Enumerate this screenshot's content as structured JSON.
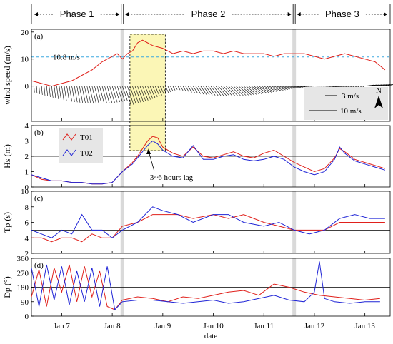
{
  "chart_data": {
    "type": "line",
    "xlabel": "date",
    "x_ticks": [
      "Jan 7",
      "Jan 8",
      "Jan 9",
      "Jan 10",
      "Jan 11",
      "Jan 12",
      "Jan 13"
    ],
    "x_range_days": [
      6.4,
      13.5
    ],
    "phases": [
      {
        "label": "Phase 1",
        "start_day": 6.4,
        "end_day": 8.2
      },
      {
        "label": "Phase 2",
        "start_day": 8.2,
        "end_day": 11.6
      },
      {
        "label": "Phase 3",
        "start_day": 11.6,
        "end_day": 13.5
      }
    ],
    "phase_boundaries_days": [
      8.2,
      11.6
    ],
    "highlight_window_days": [
      8.35,
      9.05
    ],
    "panels": [
      {
        "id": "a",
        "tag": "(a)",
        "ylabel": "wind speed (m/s)",
        "ylim": [
          -13,
          21
        ],
        "yticks": [
          0,
          10,
          20
        ],
        "reference": {
          "value": 10.8,
          "label": "10.8 m/s",
          "color": "#3aa8e0"
        },
        "series": [
          {
            "name": "",
            "color": "#e0201b",
            "x": [
              6.4,
              6.6,
              6.8,
              7.0,
              7.2,
              7.4,
              7.6,
              7.8,
              8.0,
              8.1,
              8.2,
              8.3,
              8.4,
              8.5,
              8.6,
              8.7,
              8.8,
              9.0,
              9.2,
              9.4,
              9.6,
              9.8,
              10.0,
              10.2,
              10.4,
              10.6,
              10.8,
              11.0,
              11.2,
              11.4,
              11.6,
              11.8,
              12.0,
              12.2,
              12.4,
              12.6,
              12.8,
              13.0,
              13.2,
              13.4
            ],
            "y": [
              2,
              1,
              0,
              1,
              2,
              4,
              6,
              9,
              11,
              12,
              10,
              12,
              13,
              16,
              17,
              16,
              15,
              14,
              12,
              13,
              12,
              13,
              13,
              12,
              13,
              12,
              12,
              12,
              11,
              12,
              12,
              12,
              11,
              10,
              11,
              12,
              11,
              10,
              9,
              6
            ]
          }
        ],
        "vector_legend": [
          {
            "label": "3 m/s"
          },
          {
            "label": "10 m/s"
          }
        ],
        "north_label": "N"
      },
      {
        "id": "b",
        "tag": "(b)",
        "ylabel": "Hs (m)",
        "ylim": [
          0,
          4
        ],
        "yticks": [
          0,
          1,
          2,
          3,
          4
        ],
        "reference_value": 2,
        "annotation": "3~6 hours lag",
        "series": [
          {
            "name": "T01",
            "color": "#e0201b",
            "x": [
              6.4,
              6.6,
              6.8,
              7.0,
              7.2,
              7.4,
              7.6,
              7.8,
              8.0,
              8.2,
              8.4,
              8.5,
              8.6,
              8.7,
              8.8,
              8.9,
              9.0,
              9.2,
              9.4,
              9.6,
              9.8,
              10.0,
              10.2,
              10.4,
              10.6,
              10.8,
              11.0,
              11.2,
              11.4,
              11.6,
              11.8,
              12.0,
              12.2,
              12.4,
              12.5,
              12.6,
              12.8,
              13.0,
              13.2,
              13.4
            ],
            "y": [
              0.8,
              0.5,
              0.4,
              0.4,
              0.3,
              0.3,
              0.2,
              0.2,
              0.3,
              1.0,
              1.6,
              2.0,
              2.5,
              3.0,
              3.3,
              3.2,
              2.6,
              2.2,
              2.0,
              2.6,
              2.0,
              1.9,
              2.1,
              2.3,
              2.0,
              1.9,
              2.2,
              2.4,
              2.0,
              1.6,
              1.3,
              1.0,
              1.2,
              1.9,
              2.5,
              2.3,
              1.8,
              1.6,
              1.4,
              1.2
            ]
          },
          {
            "name": "T02",
            "color": "#1f24d6",
            "x": [
              6.4,
              6.6,
              6.8,
              7.0,
              7.2,
              7.4,
              7.6,
              7.8,
              8.0,
              8.2,
              8.4,
              8.5,
              8.6,
              8.7,
              8.8,
              8.9,
              9.0,
              9.2,
              9.4,
              9.6,
              9.8,
              10.0,
              10.2,
              10.4,
              10.6,
              10.8,
              11.0,
              11.2,
              11.4,
              11.6,
              11.8,
              12.0,
              12.2,
              12.4,
              12.5,
              12.6,
              12.8,
              13.0,
              13.2,
              13.4
            ],
            "y": [
              0.8,
              0.6,
              0.4,
              0.4,
              0.3,
              0.3,
              0.2,
              0.2,
              0.3,
              1.0,
              1.5,
              1.9,
              2.3,
              2.7,
              3.0,
              2.8,
              2.4,
              2.0,
              1.9,
              2.7,
              1.8,
              1.8,
              2.0,
              2.1,
              1.8,
              1.7,
              1.8,
              2.0,
              1.8,
              1.3,
              1.0,
              0.8,
              1.0,
              1.8,
              2.6,
              2.2,
              1.7,
              1.5,
              1.3,
              1.1
            ]
          }
        ]
      },
      {
        "id": "c",
        "tag": "(c)",
        "ylabel": "Tp (s)",
        "ylim": [
          2,
          10
        ],
        "yticks": [
          2,
          4,
          6,
          8,
          10
        ],
        "reference_value": 5,
        "series": [
          {
            "name": "T01",
            "color": "#e0201b",
            "x": [
              6.4,
              6.6,
              6.8,
              7.0,
              7.2,
              7.4,
              7.6,
              7.8,
              8.0,
              8.2,
              8.5,
              8.8,
              9.0,
              9.3,
              9.6,
              10.0,
              10.3,
              10.6,
              11.0,
              11.3,
              11.6,
              11.9,
              12.2,
              12.5,
              12.8,
              13.1,
              13.4
            ],
            "y": [
              4,
              4,
              3.5,
              4,
              4,
              3.5,
              4.5,
              4,
              4,
              5.5,
              6,
              7,
              7,
              7,
              6.5,
              7,
              6.5,
              7,
              6,
              5.5,
              5,
              5,
              5,
              6,
              6,
              6,
              6
            ]
          },
          {
            "name": "T02",
            "color": "#1f24d6",
            "x": [
              6.4,
              6.6,
              6.8,
              7.0,
              7.2,
              7.4,
              7.6,
              7.8,
              8.0,
              8.2,
              8.5,
              8.8,
              9.0,
              9.3,
              9.6,
              10.0,
              10.3,
              10.6,
              11.0,
              11.3,
              11.6,
              11.9,
              12.2,
              12.5,
              12.8,
              13.1,
              13.4
            ],
            "y": [
              5,
              4.5,
              4,
              5,
              4.5,
              7,
              5,
              5,
              4,
              5,
              6,
              8,
              7.5,
              7,
              6,
              7,
              7,
              6,
              5.5,
              6,
              5,
              4.5,
              5,
              6.5,
              7,
              6.5,
              6.5
            ]
          }
        ]
      },
      {
        "id": "d",
        "tag": "(d)",
        "ylabel": "Dp (°)",
        "ylim": [
          0,
          360
        ],
        "yticks": [
          0,
          90,
          180,
          270,
          360
        ],
        "reference_value": 180,
        "series": [
          {
            "name": "T01",
            "color": "#e0201b",
            "x": [
              6.4,
              6.55,
              6.7,
              6.85,
              7.0,
              7.15,
              7.3,
              7.45,
              7.6,
              7.75,
              7.9,
              8.05,
              8.2,
              8.5,
              8.8,
              9.1,
              9.4,
              9.7,
              10.0,
              10.3,
              10.6,
              10.9,
              11.2,
              11.5,
              11.8,
              12.1,
              12.4,
              12.7,
              13.0,
              13.3
            ],
            "y": [
              120,
              290,
              60,
              300,
              150,
              320,
              90,
              310,
              120,
              280,
              60,
              40,
              100,
              120,
              110,
              90,
              120,
              110,
              130,
              150,
              160,
              130,
              200,
              180,
              150,
              130,
              120,
              110,
              100,
              110
            ]
          },
          {
            "name": "T02",
            "color": "#1f24d6",
            "x": [
              6.4,
              6.55,
              6.7,
              6.85,
              7.0,
              7.15,
              7.3,
              7.45,
              7.6,
              7.75,
              7.9,
              8.05,
              8.2,
              8.5,
              8.8,
              9.1,
              9.4,
              9.7,
              10.0,
              10.3,
              10.6,
              10.9,
              11.2,
              11.5,
              11.8,
              12.0,
              12.1,
              12.2,
              12.4,
              12.7,
              13.0,
              13.3
            ],
            "y": [
              300,
              60,
              320,
              100,
              310,
              70,
              280,
              90,
              300,
              60,
              310,
              40,
              90,
              100,
              100,
              90,
              80,
              90,
              100,
              80,
              90,
              110,
              130,
              100,
              90,
              150,
              340,
              110,
              90,
              80,
              90,
              90
            ]
          }
        ]
      }
    ],
    "legend": [
      {
        "name": "T01",
        "color": "#e0201b"
      },
      {
        "name": "T02",
        "color": "#1f24d6"
      }
    ],
    "grid": false
  }
}
